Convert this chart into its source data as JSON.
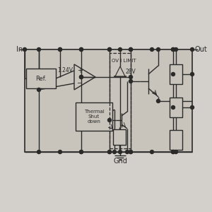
{
  "bg_color": "#d3cfca",
  "line_color": "#2a2a2a",
  "box_bg": "#c8c4bc",
  "in_label": "In",
  "out_label": "Out",
  "gnd_label": "Gnd",
  "ref_label": "Ref.",
  "voltage_label": "1.24V",
  "thermal_label": "Thermal\nShut\ndown",
  "ov_label": "OV I LIMIT",
  "zener_label": "28V"
}
